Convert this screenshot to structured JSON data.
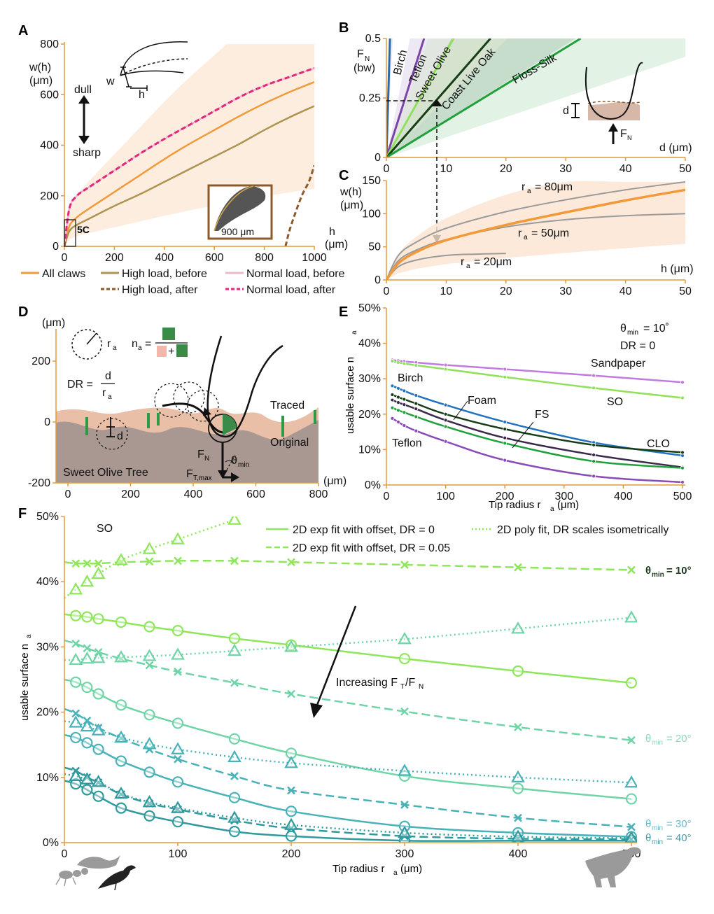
{
  "chart_data": [
    {
      "panel": "A",
      "type": "line",
      "xlabel": "h (μm)",
      "ylabel": "w(h) (μm)",
      "xlim": [
        0,
        1000
      ],
      "ylim": [
        0,
        800
      ],
      "xticks": [
        0,
        200,
        400,
        600,
        800,
        1000
      ],
      "yticks": [
        0,
        200,
        400,
        600,
        800
      ],
      "annotations": [
        "dull",
        "sharp",
        "w",
        "h",
        "5C",
        "900 μm"
      ],
      "legend": [
        "All claws",
        "High load, before",
        "Normal load, before",
        "High load, after",
        "Normal load, after"
      ],
      "series": [
        {
          "name": "All claws",
          "color": "#f29a3a",
          "style": "solid",
          "x": [
            0,
            20,
            50,
            100,
            200,
            300,
            400,
            500,
            600,
            700,
            800,
            900,
            1000
          ],
          "y": [
            0,
            80,
            115,
            150,
            215,
            280,
            345,
            405,
            460,
            515,
            565,
            610,
            650
          ]
        },
        {
          "name": "High load, before",
          "color": "#b09350",
          "style": "solid",
          "x": [
            0,
            20,
            50,
            100,
            200,
            300,
            400,
            500,
            600,
            700,
            800,
            900,
            1000
          ],
          "y": [
            0,
            60,
            85,
            110,
            160,
            205,
            255,
            305,
            355,
            405,
            460,
            510,
            555
          ]
        },
        {
          "name": "Normal load, before",
          "color": "#f0b6cf",
          "style": "solid",
          "x": [
            0,
            20,
            50,
            100,
            200,
            300,
            400,
            500,
            600,
            700,
            800,
            900,
            1000
          ],
          "y": [
            0,
            150,
            200,
            235,
            300,
            365,
            425,
            480,
            535,
            590,
            635,
            670,
            705
          ]
        },
        {
          "name": "High load, after",
          "color": "#8b5a2b",
          "style": "dashed",
          "x": [
            885,
            900,
            920,
            950,
            980,
            1000
          ],
          "y": [
            0,
            60,
            120,
            200,
            260,
            320
          ]
        },
        {
          "name": "Normal load, after",
          "color": "#e0287a",
          "style": "dashed",
          "x": [
            0,
            20,
            50,
            100,
            200,
            300,
            400,
            500,
            600,
            700,
            800,
            900,
            1000
          ],
          "y": [
            0,
            150,
            200,
            235,
            300,
            365,
            425,
            480,
            535,
            590,
            635,
            670,
            705
          ]
        }
      ]
    },
    {
      "panel": "B",
      "type": "line",
      "xlabel": "d (μm)",
      "ylabel": "F_N (bw)",
      "xlim": [
        0,
        50
      ],
      "ylim": [
        0,
        0.5
      ],
      "xticks": [
        0,
        10,
        20,
        30,
        40,
        50
      ],
      "yticks": [
        0,
        0.25,
        0.5
      ],
      "annotations": [
        "d",
        "F_N"
      ],
      "series": [
        {
          "name": "Birch",
          "color": "#2f6aa8",
          "x": [
            0,
            0.6
          ],
          "y": [
            0,
            0.5
          ]
        },
        {
          "name": "Teflon",
          "color": "#7a45a8",
          "x": [
            0,
            6.3
          ],
          "y": [
            0,
            0.5
          ]
        },
        {
          "name": "Sweet Olive",
          "color": "#8fe05a",
          "x": [
            0,
            11.2
          ],
          "y": [
            0,
            0.5
          ]
        },
        {
          "name": "Coast Live Oak",
          "color": "#173d17",
          "x": [
            0,
            17.4
          ],
          "y": [
            0,
            0.5
          ]
        },
        {
          "name": "Floss-Silk",
          "color": "#1fa03a",
          "x": [
            0,
            32.5
          ],
          "y": [
            0,
            0.5
          ]
        }
      ]
    },
    {
      "panel": "C",
      "type": "line",
      "xlabel": "h (μm)",
      "ylabel": "w(h) (μm)",
      "xlim": [
        0,
        50
      ],
      "ylim": [
        0,
        150
      ],
      "xticks": [
        0,
        10,
        20,
        30,
        40,
        50
      ],
      "yticks": [
        0,
        50,
        100,
        150
      ],
      "series": [
        {
          "name": "r_a = 80μm",
          "color": "#9a9a9a",
          "x": [
            0,
            2,
            5,
            10,
            20,
            30,
            40,
            50
          ],
          "y": [
            0,
            37,
            57,
            78,
            103,
            121,
            136,
            148
          ]
        },
        {
          "name": "r_a = 50μm",
          "color": "#9a9a9a",
          "x": [
            0,
            2,
            5,
            10,
            20,
            30,
            40,
            50
          ],
          "y": [
            0,
            29,
            45,
            61,
            80,
            91,
            97,
            100
          ]
        },
        {
          "name": "r_a = 20μm",
          "color": "#9a9a9a",
          "x": [
            0,
            2,
            5,
            10,
            15,
            20
          ],
          "y": [
            0,
            20,
            30,
            37,
            39,
            40
          ]
        },
        {
          "name": "",
          "color": "#f29a3a",
          "x": [
            0,
            2,
            5,
            10,
            20,
            30,
            40,
            50
          ],
          "y": [
            0,
            25,
            42,
            60,
            83,
            102,
            120,
            136
          ]
        }
      ]
    },
    {
      "panel": "D",
      "type": "diagram",
      "xlabel": "(μm)",
      "ylabel": "(μm)",
      "xlim": [
        0,
        800
      ],
      "ylim": [
        -200,
        200
      ],
      "xticks": [
        0,
        200,
        400,
        600,
        800
      ],
      "yticks": [
        -200,
        0,
        200
      ],
      "labels": [
        "r_a",
        "n_a =",
        "DR =",
        "d",
        "r_a",
        "Traced",
        "Original",
        "Sweet Olive Tree",
        "F_N",
        "θ_min",
        "F_T,max",
        "d",
        "+"
      ]
    },
    {
      "panel": "E",
      "type": "line",
      "xlabel": "Tip radius r_a (μm)",
      "ylabel": "usable surface n_a",
      "xlim": [
        0,
        500
      ],
      "ylim": [
        0,
        50
      ],
      "xticks": [
        0,
        100,
        200,
        300,
        400,
        500
      ],
      "yticks": [
        "0%",
        "10%",
        "20%",
        "30%",
        "40%",
        "50%"
      ],
      "annotations": [
        "θ_min = 10°",
        "DR = 0"
      ],
      "series": [
        {
          "name": "Sandpaper",
          "color": "#c07ae0",
          "x": [
            10,
            20,
            30,
            50,
            100,
            200,
            350,
            500
          ],
          "y": [
            35.3,
            35.1,
            34.9,
            34.6,
            33.9,
            32.7,
            30.9,
            29.0
          ]
        },
        {
          "name": "SO",
          "color": "#8fe05a",
          "x": [
            10,
            20,
            30,
            50,
            100,
            200,
            350,
            500
          ],
          "y": [
            35.0,
            34.6,
            34.3,
            33.8,
            32.7,
            30.5,
            27.4,
            24.6
          ]
        },
        {
          "name": "Birch",
          "color": "#2272c0",
          "x": [
            10,
            20,
            30,
            50,
            100,
            200,
            350,
            500
          ],
          "y": [
            28.0,
            27.3,
            26.6,
            25.3,
            22.6,
            17.8,
            12.0,
            8.3
          ]
        },
        {
          "name": "CLO",
          "color": "#173d17",
          "x": [
            10,
            20,
            30,
            50,
            100,
            200,
            350,
            500
          ],
          "y": [
            25.5,
            24.8,
            24.2,
            23.0,
            20.0,
            15.8,
            11.3,
            9.2
          ]
        },
        {
          "name": "Foam",
          "color": "#3a2a4a",
          "x": [
            10,
            20,
            30,
            50,
            100,
            200,
            350,
            500
          ],
          "y": [
            24.0,
            23.3,
            22.7,
            21.5,
            18.3,
            13.3,
            8.5,
            5.0
          ]
        },
        {
          "name": "FS",
          "color": "#1fa03a",
          "x": [
            10,
            20,
            30,
            50,
            100,
            200,
            350,
            500
          ],
          "y": [
            21.8,
            21.1,
            20.5,
            19.3,
            16.5,
            11.8,
            6.7,
            4.8
          ]
        },
        {
          "name": "Teflon",
          "color": "#8a4ab8",
          "x": [
            10,
            20,
            30,
            50,
            100,
            200,
            350,
            500
          ],
          "y": [
            18.8,
            17.8,
            16.8,
            15.3,
            12.3,
            7.0,
            2.5,
            0.8
          ]
        }
      ]
    },
    {
      "panel": "F",
      "type": "line",
      "title": "SO",
      "xlabel": "Tip radius r_a (μm)",
      "ylabel": "usable surface n_a",
      "xlim": [
        0,
        500
      ],
      "ylim": [
        0,
        50
      ],
      "xticks": [
        0,
        100,
        200,
        300,
        400,
        500
      ],
      "yticks": [
        "0%",
        "10%",
        "20%",
        "30%",
        "40%",
        "50%"
      ],
      "legend": [
        "2D exp fit with offset, DR = 0",
        "2D exp fit with offset, DR = 0.05",
        "2D poly fit, DR scales isometrically"
      ],
      "annotations": [
        "Increasing F_T/F_N",
        "θmin = 10°",
        "θmin = 20°",
        "θmin = 30°",
        "θmin = 40°"
      ],
      "x": [
        0,
        10,
        20,
        30,
        50,
        75,
        100,
        150,
        200,
        300,
        400,
        500
      ],
      "series": [
        {
          "name": "θmin = 10°, DR = 0",
          "color": "#8ee65a",
          "marker": "circle",
          "style": "solid",
          "y": [
            35.0,
            34.8,
            34.6,
            34.3,
            33.8,
            33.1,
            32.5,
            31.3,
            30.3,
            28.2,
            26.3,
            24.5
          ]
        },
        {
          "name": "θmin = 10°, DR = 0.05",
          "color": "#8ee65a",
          "marker": "x",
          "style": "dashed",
          "y": [
            43.0,
            42.8,
            42.8,
            42.8,
            43.0,
            43.1,
            43.2,
            43.2,
            43.0,
            42.6,
            42.2,
            41.8
          ]
        },
        {
          "name": "θmin = 10°, DR isometric",
          "color": "#8ee65a",
          "marker": "triangle",
          "style": "dotted",
          "y": [
            37.5,
            38.8,
            40.0,
            41.2,
            43.3,
            45.0,
            46.5,
            49.5,
            null,
            null,
            null,
            null
          ]
        },
        {
          "name": "θmin = 20°, DR = 0",
          "color": "#6fd4a6",
          "marker": "circle",
          "style": "solid",
          "y": [
            25.0,
            24.6,
            23.8,
            22.8,
            21.1,
            19.6,
            18.3,
            15.9,
            13.7,
            10.2,
            8.3,
            6.7
          ]
        },
        {
          "name": "θmin = 20°, DR = 0.05",
          "color": "#6fd4a6",
          "marker": "x",
          "style": "dashed",
          "y": [
            31.0,
            30.5,
            29.8,
            29.2,
            28.2,
            27.2,
            26.2,
            24.5,
            22.8,
            20.1,
            17.7,
            15.7
          ]
        },
        {
          "name": "θmin = 20°, DR isometric",
          "color": "#6fd4a6",
          "marker": "triangle",
          "style": "dotted",
          "y": [
            28.0,
            28.0,
            28.2,
            28.3,
            28.4,
            28.6,
            28.8,
            29.4,
            30.0,
            31.2,
            32.8,
            34.5
          ]
        },
        {
          "name": "θmin = 30°, DR = 0",
          "color": "#48b2b8",
          "marker": "circle",
          "style": "solid",
          "y": [
            16.5,
            16.1,
            15.3,
            14.3,
            12.5,
            10.8,
            9.3,
            6.9,
            4.8,
            2.5,
            1.5,
            0.9
          ]
        },
        {
          "name": "θmin = 30°, DR = 0.05",
          "color": "#48b2b8",
          "marker": "x",
          "style": "dashed",
          "y": [
            20.5,
            19.8,
            18.7,
            17.6,
            16.0,
            14.3,
            12.8,
            10.2,
            8.0,
            5.8,
            3.8,
            2.4
          ]
        },
        {
          "name": "θmin = 30°, DR isometric",
          "color": "#48b2b8",
          "marker": "triangle",
          "style": "dotted",
          "y": [
            18.6,
            18.4,
            17.8,
            17.2,
            16.1,
            15.1,
            14.3,
            13.1,
            12.2,
            11.0,
            10.0,
            9.2
          ]
        },
        {
          "name": "θmin = 40°, DR = 0",
          "color": "#2f9a9e",
          "marker": "circle",
          "style": "solid",
          "y": [
            9.5,
            9.0,
            8.1,
            7.1,
            5.3,
            4.1,
            3.2,
            1.7,
            1.0,
            0.3,
            0.3,
            0.3
          ]
        },
        {
          "name": "θmin = 40°, DR = 0.05",
          "color": "#2f9a9e",
          "marker": "x",
          "style": "dashed",
          "y": [
            11.5,
            11.0,
            10.0,
            9.2,
            7.4,
            6.0,
            5.1,
            3.4,
            2.2,
            1.0,
            0.6,
            0.5
          ]
        },
        {
          "name": "θmin = 40°, DR isometric",
          "color": "#2f9a9e",
          "marker": "triangle",
          "style": "dotted",
          "y": [
            10.5,
            10.2,
            9.7,
            9.3,
            7.5,
            6.2,
            5.3,
            3.8,
            2.7,
            1.5,
            0.9,
            0.7
          ]
        }
      ]
    }
  ],
  "labels": {
    "A": "A",
    "B": "B",
    "C": "C",
    "D": "D",
    "E": "E",
    "F": "F",
    "a_ylabel1": "w(h)",
    "a_ylabel2": "(μm)",
    "a_dull": "dull",
    "a_sharp": "sharp",
    "a_w": "w",
    "a_h": "h",
    "a_5c": "5C",
    "a_900": "900 μm",
    "a_xlab1": "h",
    "a_xlab2": "(μm)",
    "leg_all": "All claws",
    "leg_hlb": "High load, before",
    "leg_nlb": "Normal load, before",
    "leg_hla": "High load, after",
    "leg_nla": "Normal load, after",
    "b_fn": "F",
    "b_fn_sub": "N",
    "b_bw": "(bw)",
    "b_d": "d (μm)",
    "b_birch": "Birch",
    "b_teflon": "Teflon",
    "b_so": "Sweet Olive",
    "b_clo": "Coast Live Oak",
    "b_fs": "Floss-Silk",
    "b_inset_d": "d",
    "b_inset_f": "F",
    "b_inset_fsub": "N",
    "c_y1": "w(h)",
    "c_y2": "(μm)",
    "c_h": "h (μm)",
    "c_r80": "= 80μm",
    "c_r50": "= 50μm",
    "c_r20": "= 20μm",
    "c_r": "r",
    "c_a": "a",
    "d_um": "(μm)",
    "d_ra": "r",
    "d_na": "n",
    "d_eq": "=",
    "d_plus": "+",
    "d_dr": "DR =",
    "d_dnum": "d",
    "d_rden": "r",
    "d_d": "d",
    "d_traced": "Traced",
    "d_original": "Original",
    "d_tree": "Sweet Olive Tree",
    "d_fn": "F",
    "d_fnsub": "N",
    "d_theta": "θ",
    "d_thetasub": "min",
    "d_ft": "F",
    "d_ftsub": "T,max",
    "d_xum": "(μm)",
    "e_theta": "θ",
    "e_thetasub": "min",
    "e_theta_val": "= 10˚",
    "e_dr": "DR = 0",
    "e_y": "usable surface n",
    "e_ysub": "a",
    "e_x": "Tip radius r",
    "e_xsub": "a",
    "e_xunit": "(μm)",
    "e_sand": "Sandpaper",
    "e_so": "SO",
    "e_birch": "Birch",
    "e_foam": "Foam",
    "e_fs": "FS",
    "e_clo": "CLO",
    "e_teflon": "Teflon",
    "f_so": "SO",
    "f_leg1": "2D exp fit with offset, DR = 0",
    "f_leg2": "2D exp fit with offset, DR = 0.05",
    "f_leg3": "2D poly fit, DR scales isometrically",
    "f_inc": "Increasing F",
    "f_inc_t": "T",
    "f_inc_slash": "/F",
    "f_inc_n": "N",
    "f_t10": "θ",
    "f_t10sub": "min",
    "f_t10v": "= 10°",
    "f_t20": "θ",
    "f_t20sub": "min",
    "f_t20v": "= 20°",
    "f_t30": "θ",
    "f_t30sub": "min",
    "f_t30v": "= 30°",
    "f_t40": "θ",
    "f_t40sub": "min",
    "f_t40v": "= 40°",
    "f_y": "usable surface n",
    "f_ysub": "a",
    "f_x": "Tip radius r",
    "f_xsub": "a",
    "f_xunit": "(μm)"
  }
}
